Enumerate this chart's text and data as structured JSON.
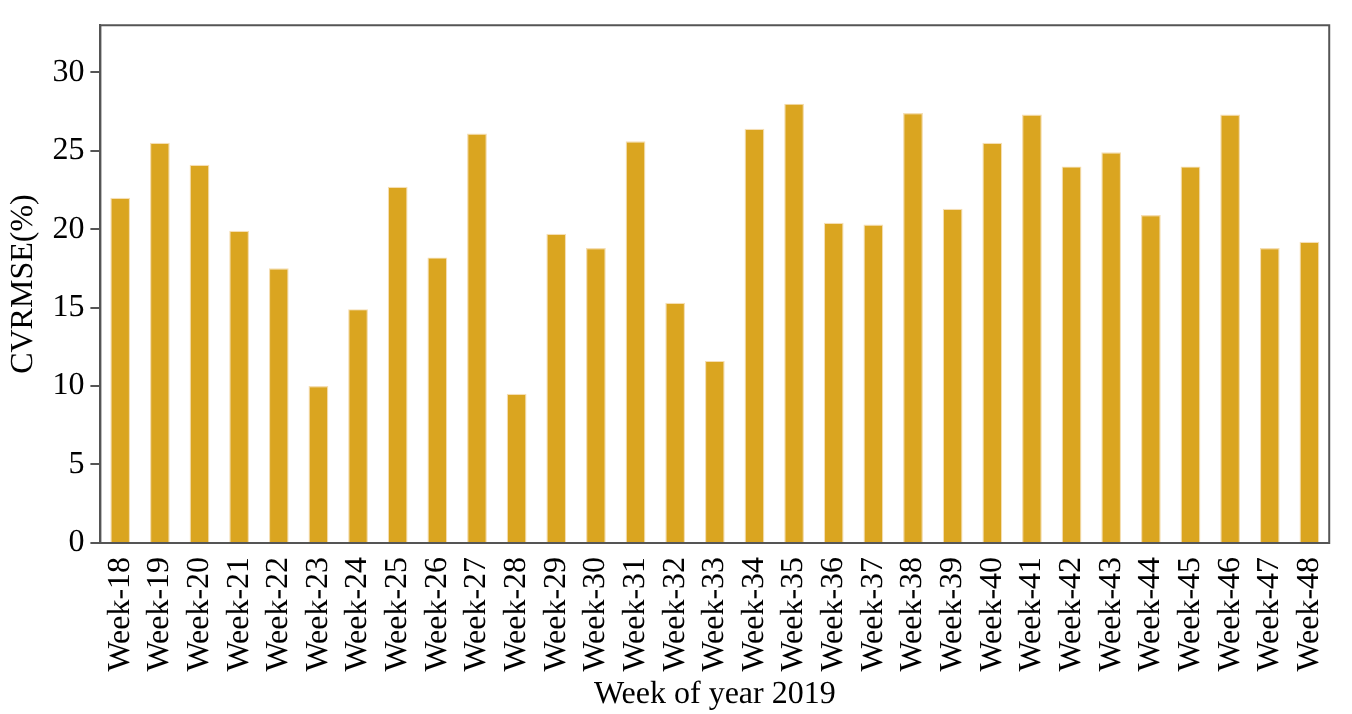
{
  "chart_data": {
    "type": "bar",
    "xlabel": "Week of year 2019",
    "ylabel": "CVRMSE(%)",
    "categories": [
      "Week-18",
      "Week-19",
      "Week-20",
      "Week-21",
      "Week-22",
      "Week-23",
      "Week-24",
      "Week-25",
      "Week-26",
      "Week-27",
      "Week-28",
      "Week-29",
      "Week-30",
      "Week-31",
      "Week-32",
      "Week-33",
      "Week-34",
      "Week-35",
      "Week-36",
      "Week-37",
      "Week-38",
      "Week-39",
      "Week-40",
      "Week-41",
      "Week-42",
      "Week-43",
      "Week-44",
      "Week-45",
      "Week-46",
      "Week-47",
      "Week-48"
    ],
    "values": [
      22.0,
      25.5,
      24.1,
      19.9,
      17.5,
      10.0,
      14.9,
      22.7,
      18.2,
      26.1,
      9.5,
      19.7,
      18.8,
      25.6,
      15.3,
      11.6,
      26.4,
      28.0,
      20.4,
      20.3,
      27.4,
      21.3,
      25.5,
      27.3,
      24.0,
      24.9,
      20.9,
      24.0,
      27.3,
      18.8,
      19.2
    ],
    "color": "#daa520",
    "ylim": [
      0,
      33
    ],
    "yticks": [
      0,
      5,
      10,
      15,
      20,
      25,
      30
    ],
    "grid": false,
    "legend": false
  }
}
